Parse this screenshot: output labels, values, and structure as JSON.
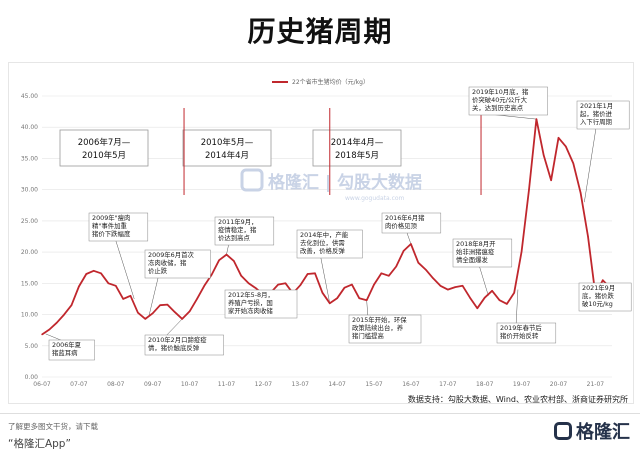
{
  "title": "历史猪周期",
  "chart_data": {
    "type": "line",
    "title": "历史猪周期",
    "series_name": "22个省市生猪均价（元/kg）",
    "ylim": [
      0,
      45
    ],
    "y_ticks": [
      "0.00",
      "5.00",
      "10.00",
      "15.00",
      "20.00",
      "25.00",
      "30.00",
      "35.00",
      "40.00",
      "45.00"
    ],
    "x_ticks": [
      "06-07",
      "07-07",
      "08-07",
      "09-07",
      "10-07",
      "11-07",
      "12-07",
      "13-07",
      "14-07",
      "15-07",
      "16-07",
      "17-07",
      "18-07",
      "19-07",
      "20-07",
      "21-07"
    ],
    "x": [
      2006.5,
      2006.7,
      2006.9,
      2007.1,
      2007.3,
      2007.5,
      2007.7,
      2007.9,
      2008.1,
      2008.3,
      2008.5,
      2008.7,
      2008.9,
      2009.1,
      2009.3,
      2009.5,
      2009.7,
      2009.9,
      2010.1,
      2010.3,
      2010.5,
      2010.7,
      2010.9,
      2011.1,
      2011.3,
      2011.5,
      2011.7,
      2011.9,
      2012.1,
      2012.3,
      2012.5,
      2012.7,
      2012.9,
      2013.1,
      2013.3,
      2013.5,
      2013.7,
      2013.9,
      2014.1,
      2014.3,
      2014.5,
      2014.7,
      2014.9,
      2015.1,
      2015.3,
      2015.5,
      2015.7,
      2015.9,
      2016.1,
      2016.3,
      2016.5,
      2016.7,
      2016.9,
      2017.1,
      2017.3,
      2017.5,
      2017.7,
      2017.9,
      2018.1,
      2018.3,
      2018.5,
      2018.7,
      2018.9,
      2019.1,
      2019.3,
      2019.5,
      2019.7,
      2019.9,
      2020.1,
      2020.3,
      2020.5,
      2020.7,
      2020.9,
      2021.1,
      2021.3,
      2021.5,
      2021.7,
      2021.9
    ],
    "values": [
      6.8,
      7.6,
      8.7,
      10.0,
      11.5,
      14.5,
      16.5,
      17.0,
      16.6,
      15.0,
      14.6,
      12.5,
      13.0,
      10.3,
      9.3,
      10.2,
      11.5,
      11.6,
      10.4,
      9.3,
      10.5,
      12.5,
      14.6,
      16.4,
      18.7,
      19.6,
      18.6,
      16.2,
      15.0,
      14.2,
      13.2,
      13.5,
      14.8,
      15.0,
      13.4,
      14.7,
      16.5,
      16.6,
      13.5,
      11.8,
      12.6,
      14.3,
      14.8,
      12.6,
      12.3,
      14.8,
      16.6,
      16.2,
      17.7,
      20.2,
      21.3,
      18.3,
      17.2,
      15.8,
      14.6,
      14.0,
      14.4,
      14.6,
      12.7,
      11.0,
      12.7,
      13.8,
      12.3,
      11.7,
      13.5,
      20.1,
      30.0,
      41.3,
      35.5,
      31.5,
      38.3,
      36.9,
      34.2,
      29.5,
      22.5,
      13.2,
      15.5,
      14.3
    ],
    "line_color": "#c0272d",
    "cycles": [
      "2006年7月—\n2010年5月",
      "2010年5月—\n2014年4月",
      "2014年4月—\n2018年5月"
    ],
    "annotations": [
      "2006年夏\n猪蓝耳病",
      "2009年\"瘦肉\n精\"事件加重\n猪价下跌幅度",
      "2009年6月首次\n冻肉收储，猪\n价止跌",
      "2010年2月口蹄疫疫\n情，猪价触底反弹",
      "2011年9月，\n疫情稳定，猪\n价达到高点",
      "2012年5-8月，\n养殖户亏损，国\n家开始冻肉收储",
      "2014年中，产能\n去化到位，供需\n改善，价格反弹",
      "2015年开始，环保\n政策陆续出台，养\n猪门槛提高",
      "2016年6月猪\n肉价格见顶",
      "2018年8月开\n始非洲猪瘟疫\n情全面爆发",
      "2019年春节后\n猪价开始反转",
      "2019年10月底，猪\n价突破40元/公斤大\n关，达到历史高点",
      "2021年1月\n起，猪价进\n入下行周期",
      "2021年9月\n底，猪价跌\n破10元/kg"
    ],
    "grid": true,
    "legend_position": "top-center"
  },
  "watermark": "格隆汇 | 勾股大数据",
  "watermark_url": "www.gogudata.com",
  "source": "数据支持：勾股大数据、Wind、农业农村部、浙商证券研究所",
  "footer_note": "了解更多图文干货，请下载",
  "footer_app": "“格隆汇App”",
  "footer_logo": "格隆汇",
  "colors": {
    "line": "#c0272d",
    "grid": "#e3e3e3",
    "axis_text": "#777777"
  }
}
